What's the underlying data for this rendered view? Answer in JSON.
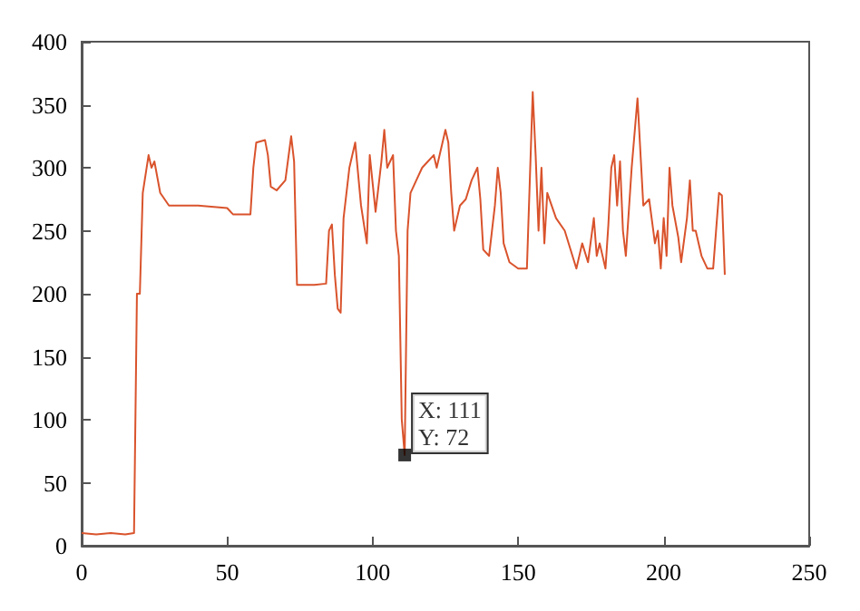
{
  "chart_data": {
    "type": "line",
    "x": [
      0,
      5,
      10,
      15,
      18,
      19,
      20,
      21,
      23,
      24,
      25,
      27,
      30,
      40,
      50,
      52,
      58,
      59,
      60,
      63,
      64,
      65,
      67,
      70,
      72,
      73,
      74,
      80,
      84,
      85,
      86,
      87,
      88,
      89,
      90,
      92,
      94,
      96,
      98,
      99,
      101,
      103,
      104,
      105,
      107,
      108,
      109,
      110,
      111,
      112,
      113,
      115,
      117,
      119,
      121,
      122,
      124,
      125,
      126,
      127,
      128,
      130,
      132,
      134,
      136,
      137,
      138,
      140,
      142,
      143,
      144,
      145,
      147,
      150,
      153,
      154,
      155,
      156,
      157,
      158,
      159,
      160,
      163,
      166,
      170,
      172,
      174,
      176,
      177,
      178,
      180,
      181,
      182,
      183,
      184,
      185,
      186,
      187,
      189,
      191,
      193,
      195,
      197,
      198,
      199,
      200,
      201,
      202,
      203,
      205,
      206,
      208,
      209,
      210,
      211,
      213,
      215,
      217,
      219,
      220,
      221
    ],
    "series": [
      {
        "color": "#d9532c",
        "values": [
          10,
          9,
          10,
          9,
          10,
          200,
          200,
          280,
          310,
          300,
          305,
          280,
          270,
          270,
          268,
          263,
          263,
          300,
          320,
          322,
          310,
          285,
          282,
          290,
          325,
          305,
          207,
          207,
          208,
          250,
          255,
          215,
          188,
          185,
          260,
          300,
          320,
          270,
          240,
          310,
          265,
          305,
          330,
          300,
          310,
          250,
          230,
          100,
          72,
          250,
          280,
          290,
          300,
          305,
          310,
          300,
          320,
          330,
          320,
          280,
          250,
          270,
          275,
          290,
          300,
          275,
          235,
          230,
          270,
          300,
          280,
          240,
          225,
          220,
          220,
          290,
          360,
          310,
          250,
          300,
          240,
          280,
          260,
          250,
          220,
          240,
          225,
          260,
          230,
          240,
          220,
          255,
          300,
          310,
          270,
          305,
          250,
          230,
          300,
          355,
          270,
          275,
          240,
          250,
          220,
          260,
          230,
          300,
          270,
          245,
          225,
          260,
          290,
          250,
          250,
          230,
          220,
          220,
          280,
          278,
          215
        ]
      }
    ],
    "xlim": [
      0,
      250
    ],
    "xticks": [
      0,
      50,
      100,
      150,
      200,
      250
    ],
    "ylim": [
      0,
      400
    ],
    "yticks": [
      0,
      50,
      100,
      150,
      200,
      250,
      300,
      350,
      400
    ],
    "marker": "none",
    "line_style": "solid",
    "annotations": [
      {
        "text": "X: 111\nY: 72",
        "x": 111,
        "y": 72
      }
    ]
  }
}
